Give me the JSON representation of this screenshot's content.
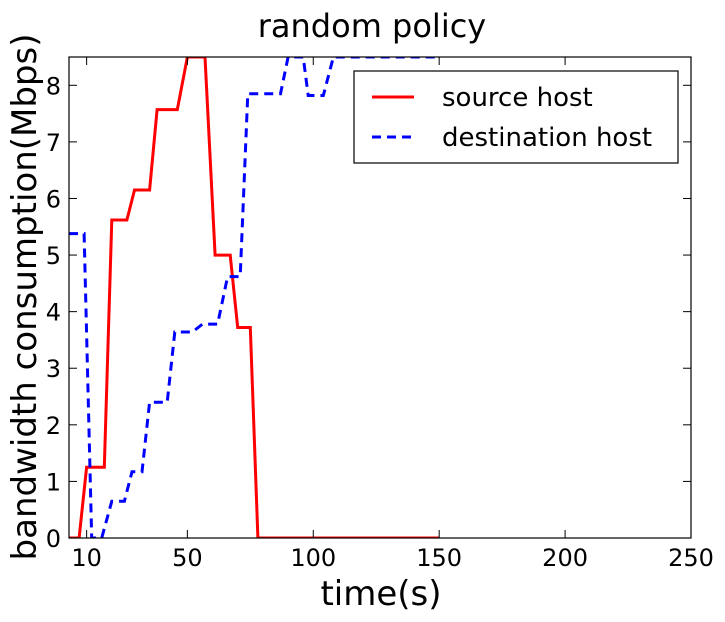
{
  "chart_data": {
    "type": "line",
    "title": "random policy",
    "xlabel": "time(s)",
    "ylabel": "bandwidth consumption(Mbps)",
    "xlim": [
      3,
      250
    ],
    "ylim": [
      0,
      8.5
    ],
    "x_ticks": [
      10,
      50,
      100,
      150,
      200,
      250
    ],
    "y_ticks": [
      0,
      1,
      2,
      3,
      4,
      5,
      6,
      7,
      8
    ],
    "grid": false,
    "legend_position": "top-right",
    "series": [
      {
        "name": "source host",
        "color": "#ff0000",
        "style": "solid",
        "points": [
          [
            3,
            0
          ],
          [
            7,
            0
          ],
          [
            10,
            1.25
          ],
          [
            17,
            1.25
          ],
          [
            20,
            5.62
          ],
          [
            26,
            5.62
          ],
          [
            29,
            6.15
          ],
          [
            35,
            6.15
          ],
          [
            38,
            7.57
          ],
          [
            46,
            7.57
          ],
          [
            50,
            8.5
          ],
          [
            57,
            8.5
          ],
          [
            61,
            5.0
          ],
          [
            67,
            5.0
          ],
          [
            70,
            3.72
          ],
          [
            75,
            3.72
          ],
          [
            78,
            0
          ],
          [
            150,
            0
          ]
        ]
      },
      {
        "name": "destination host",
        "color": "#0000ff",
        "style": "dashed",
        "points": [
          [
            3,
            5.38
          ],
          [
            9,
            5.38
          ],
          [
            12,
            0
          ],
          [
            16,
            0
          ],
          [
            20,
            0.65
          ],
          [
            25,
            0.65
          ],
          [
            28,
            1.17
          ],
          [
            32,
            1.17
          ],
          [
            35,
            2.4
          ],
          [
            42,
            2.4
          ],
          [
            45,
            3.64
          ],
          [
            52,
            3.64
          ],
          [
            56,
            3.78
          ],
          [
            62,
            3.78
          ],
          [
            66,
            4.62
          ],
          [
            71,
            4.62
          ],
          [
            74,
            7.85
          ],
          [
            87,
            7.85
          ],
          [
            90,
            8.5
          ],
          [
            96,
            8.5
          ],
          [
            98,
            7.82
          ],
          [
            104,
            7.82
          ],
          [
            108,
            8.5
          ],
          [
            150,
            8.5
          ]
        ]
      }
    ]
  }
}
